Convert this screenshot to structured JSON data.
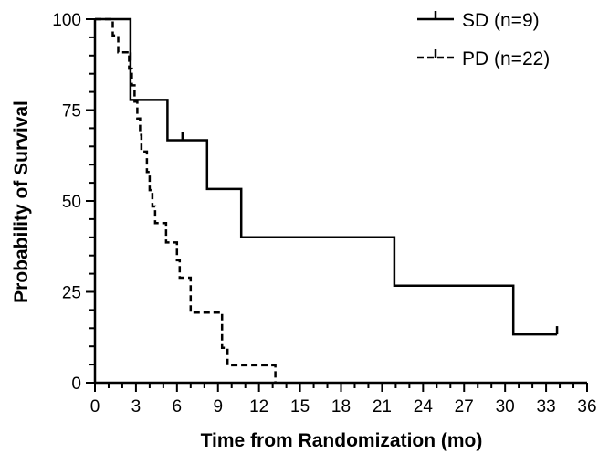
{
  "chart_data": {
    "type": "line",
    "subtype": "kaplan-meier",
    "xlabel": "Time from Randomization (mo)",
    "ylabel": "Probability of Survival",
    "xlim": [
      0,
      36
    ],
    "ylim": [
      0,
      100
    ],
    "xticks": [
      0,
      3,
      6,
      9,
      12,
      15,
      18,
      21,
      24,
      27,
      30,
      33,
      36
    ],
    "yticks": [
      0,
      25,
      50,
      75,
      100
    ],
    "grid": false,
    "legend_position": "top-right",
    "series": [
      {
        "name": "SD (n=9)",
        "style": "solid",
        "color": "#000000",
        "steps": [
          [
            0,
            100
          ],
          [
            2.6,
            100
          ],
          [
            2.6,
            77.8
          ],
          [
            5.3,
            77.8
          ],
          [
            5.3,
            66.7
          ],
          [
            8.2,
            66.7
          ],
          [
            8.2,
            53.3
          ],
          [
            10.7,
            53.3
          ],
          [
            10.7,
            40.0
          ],
          [
            21.9,
            40.0
          ],
          [
            21.9,
            26.7
          ],
          [
            30.6,
            26.7
          ],
          [
            30.6,
            13.3
          ],
          [
            33.8,
            13.3
          ]
        ],
        "censored": [
          [
            6.4,
            66.7
          ],
          [
            33.8,
            13.3
          ]
        ]
      },
      {
        "name": "PD (n=22)",
        "style": "dashed",
        "color": "#000000",
        "steps": [
          [
            0,
            100
          ],
          [
            1.3,
            100
          ],
          [
            1.3,
            95.5
          ],
          [
            1.7,
            95.5
          ],
          [
            1.7,
            90.9
          ],
          [
            2.5,
            90.9
          ],
          [
            2.5,
            86.4
          ],
          [
            2.7,
            86.4
          ],
          [
            2.7,
            81.8
          ],
          [
            2.9,
            81.8
          ],
          [
            2.9,
            77.3
          ],
          [
            3.1,
            77.3
          ],
          [
            3.1,
            72.7
          ],
          [
            3.3,
            72.7
          ],
          [
            3.3,
            68.2
          ],
          [
            3.4,
            68.2
          ],
          [
            3.4,
            63.6
          ],
          [
            3.8,
            63.6
          ],
          [
            3.8,
            58.0
          ],
          [
            4.0,
            58.0
          ],
          [
            4.0,
            53.0
          ],
          [
            4.2,
            53.0
          ],
          [
            4.2,
            48.5
          ],
          [
            4.4,
            48.5
          ],
          [
            4.4,
            43.9
          ],
          [
            5.2,
            43.9
          ],
          [
            5.2,
            38.6
          ],
          [
            6.0,
            38.6
          ],
          [
            6.0,
            33.7
          ],
          [
            6.2,
            33.7
          ],
          [
            6.2,
            28.9
          ],
          [
            7.0,
            28.9
          ],
          [
            7.0,
            19.3
          ],
          [
            9.3,
            19.3
          ],
          [
            9.3,
            9.6
          ],
          [
            9.7,
            9.6
          ],
          [
            9.7,
            4.8
          ],
          [
            13.2,
            4.8
          ],
          [
            13.2,
            0
          ]
        ],
        "censored": [
          [
            2.6,
            88.6
          ]
        ]
      }
    ]
  }
}
